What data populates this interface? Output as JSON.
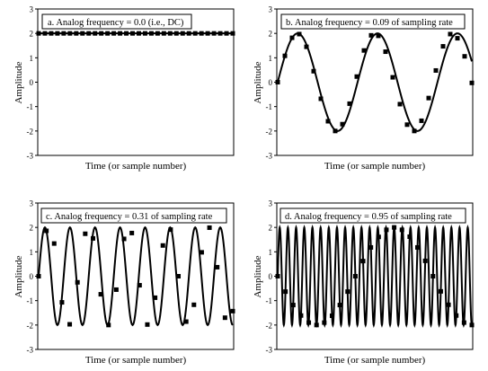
{
  "chart_data": [
    {
      "type": "line",
      "title": "a.  Analog frequency = 0.0  (i.e., DC)",
      "xlabel": "Time (or sample number)",
      "ylabel": "Amplitude",
      "ylim": [
        -3,
        3
      ],
      "yticks": [
        "3",
        "2",
        "1",
        "0",
        "-1",
        "-2",
        "-3"
      ],
      "grid": false,
      "frequency": 0.0,
      "amplitude": 2,
      "samples": [
        2,
        2,
        2,
        2,
        2,
        2,
        2,
        2,
        2,
        2,
        2,
        2,
        2,
        2,
        2,
        2,
        2,
        2,
        2,
        2,
        2,
        2,
        2,
        2,
        2,
        2,
        2,
        2,
        2,
        2,
        2,
        2
      ]
    },
    {
      "type": "line",
      "title": "b.  Analog frequency = 0.09 of sampling rate",
      "xlabel": "Time (or sample number)",
      "ylabel": "Amplitude",
      "ylim": [
        -3,
        3
      ],
      "yticks": [
        "3",
        "2",
        "1",
        "0",
        "-1",
        "-2",
        "-3"
      ],
      "grid": false,
      "frequency": 0.09,
      "amplitude": 2,
      "samples": [
        0.0,
        1.08,
        1.82,
        1.97,
        1.45,
        0.45,
        -0.68,
        -1.6,
        -2.0,
        -1.72,
        -0.88,
        0.23,
        1.3,
        1.92,
        1.9,
        1.25,
        0.2,
        -0.9,
        -1.74,
        -2.0,
        -1.58,
        -0.65,
        0.48,
        1.47,
        1.97,
        1.8,
        1.06,
        -0.03
      ]
    },
    {
      "type": "line",
      "title": "c.  Analog frequency = 0.31 of sampling rate",
      "xlabel": "Time (or sample number)",
      "ylabel": "Amplitude",
      "ylim": [
        -3,
        3
      ],
      "yticks": [
        "3",
        "2",
        "1",
        "0",
        "-1",
        "-2",
        "-3"
      ],
      "grid": false,
      "frequency": 0.31,
      "amplitude": 2,
      "samples": [
        0.0,
        1.86,
        1.34,
        -1.07,
        -1.97,
        -0.25,
        1.74,
        1.55,
        -0.74,
        -2.0,
        -0.55,
        1.53,
        1.77,
        -0.37,
        -1.98,
        -0.88,
        1.26,
        1.91,
        0.0,
        -1.86,
        -1.17,
        0.98,
        1.99,
        0.37,
        -1.7,
        -1.43
      ]
    },
    {
      "type": "line",
      "title": "d.  Analog frequency = 0.95 of sampling rate",
      "xlabel": "Time (or sample number)",
      "ylabel": "Amplitude",
      "ylim": [
        -3,
        3
      ],
      "yticks": [
        "3",
        "2",
        "1",
        "0",
        "-1",
        "-2",
        "-3"
      ],
      "grid": false,
      "frequency": 0.95,
      "amplitude": 2,
      "samples": [
        0.0,
        -0.63,
        -1.18,
        -1.61,
        -1.9,
        -2.0,
        -1.9,
        -1.62,
        -1.18,
        -0.63,
        0.0,
        0.62,
        1.18,
        1.61,
        1.9,
        2.0,
        1.9,
        1.62,
        1.18,
        0.63,
        0.0,
        -0.62,
        -1.17,
        -1.61,
        -1.9,
        -2.0
      ]
    }
  ]
}
